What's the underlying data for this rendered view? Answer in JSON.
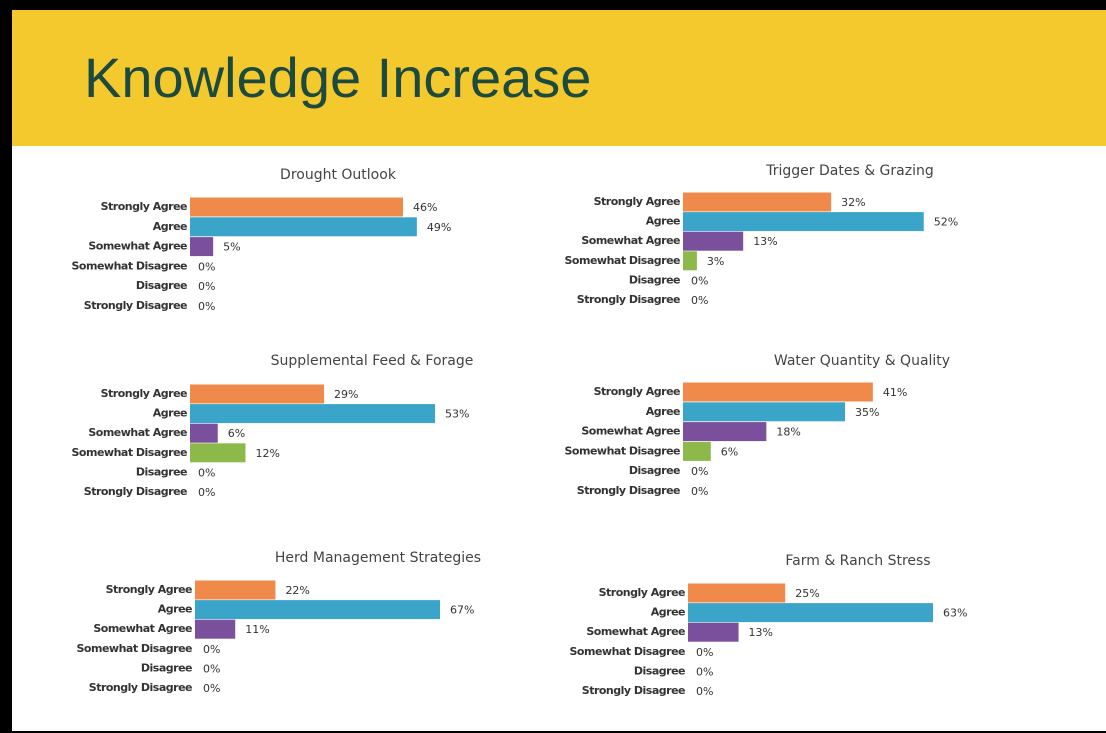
{
  "title": "Knowledge Increase",
  "chart_data": [
    {
      "type": "bar",
      "orientation": "horizontal",
      "title": "Drought Outlook",
      "categories": [
        "Strongly Agree",
        "Agree",
        "Somewhat Agree",
        "Somewhat Disagree",
        "Disagree",
        "Strongly Disagree"
      ],
      "values": [
        46,
        49,
        5,
        0,
        0,
        0
      ],
      "value_labels": [
        "46%",
        "49%",
        "5%",
        "0%",
        "0%",
        "0%"
      ],
      "colors": [
        "#f08a4b",
        "#3aa5c9",
        "#7a4f9c",
        "#8db84a",
        "#8db84a",
        "#8db84a"
      ]
    },
    {
      "type": "bar",
      "orientation": "horizontal",
      "title": "Trigger Dates & Grazing",
      "categories": [
        "Strongly Agree",
        "Agree",
        "Somewhat Agree",
        "Somewhat Disagree",
        "Disagree",
        "Strongly Disagree"
      ],
      "values": [
        32,
        52,
        13,
        3,
        0,
        0
      ],
      "value_labels": [
        "32%",
        "52%",
        "13%",
        "3%",
        "0%",
        "0%"
      ],
      "colors": [
        "#f08a4b",
        "#3aa5c9",
        "#7a4f9c",
        "#8db84a",
        "#8db84a",
        "#8db84a"
      ]
    },
    {
      "type": "bar",
      "orientation": "horizontal",
      "title": "Supplemental Feed & Forage",
      "categories": [
        "Strongly Agree",
        "Agree",
        "Somewhat Agree",
        "Somewhat Disagree",
        "Disagree",
        "Strongly Disagree"
      ],
      "values": [
        29,
        53,
        6,
        12,
        0,
        0
      ],
      "value_labels": [
        "29%",
        "53%",
        "6%",
        "12%",
        "0%",
        "0%"
      ],
      "colors": [
        "#f08a4b",
        "#3aa5c9",
        "#7a4f9c",
        "#8db84a",
        "#8db84a",
        "#8db84a"
      ]
    },
    {
      "type": "bar",
      "orientation": "horizontal",
      "title": "Water Quantity & Quality",
      "categories": [
        "Strongly Agree",
        "Agree",
        "Somewhat Agree",
        "Somewhat Disagree",
        "Disagree",
        "Strongly Disagree"
      ],
      "values": [
        41,
        35,
        18,
        6,
        0,
        0
      ],
      "value_labels": [
        "41%",
        "35%",
        "18%",
        "6%",
        "0%",
        "0%"
      ],
      "colors": [
        "#f08a4b",
        "#3aa5c9",
        "#7a4f9c",
        "#8db84a",
        "#8db84a",
        "#8db84a"
      ]
    },
    {
      "type": "bar",
      "orientation": "horizontal",
      "title": "Herd Management Strategies",
      "categories": [
        "Strongly Agree",
        "Agree",
        "Somewhat Agree",
        "Somewhat Disagree",
        "Disagree",
        "Strongly Disagree"
      ],
      "values": [
        22,
        67,
        11,
        0,
        0,
        0
      ],
      "value_labels": [
        "22%",
        "67%",
        "11%",
        "0%",
        "0%",
        "0%"
      ],
      "colors": [
        "#f08a4b",
        "#3aa5c9",
        "#7a4f9c",
        "#8db84a",
        "#8db84a",
        "#8db84a"
      ]
    },
    {
      "type": "bar",
      "orientation": "horizontal",
      "title": "Farm & Ranch Stress",
      "categories": [
        "Strongly Agree",
        "Agree",
        "Somewhat Agree",
        "Somewhat Disagree",
        "Disagree",
        "Strongly Disagree"
      ],
      "values": [
        25,
        63,
        13,
        0,
        0,
        0
      ],
      "value_labels": [
        "25%",
        "63%",
        "13%",
        "0%",
        "0%",
        "0%"
      ],
      "colors": [
        "#f08a4b",
        "#3aa5c9",
        "#7a4f9c",
        "#8db84a",
        "#8db84a",
        "#8db84a"
      ]
    }
  ]
}
